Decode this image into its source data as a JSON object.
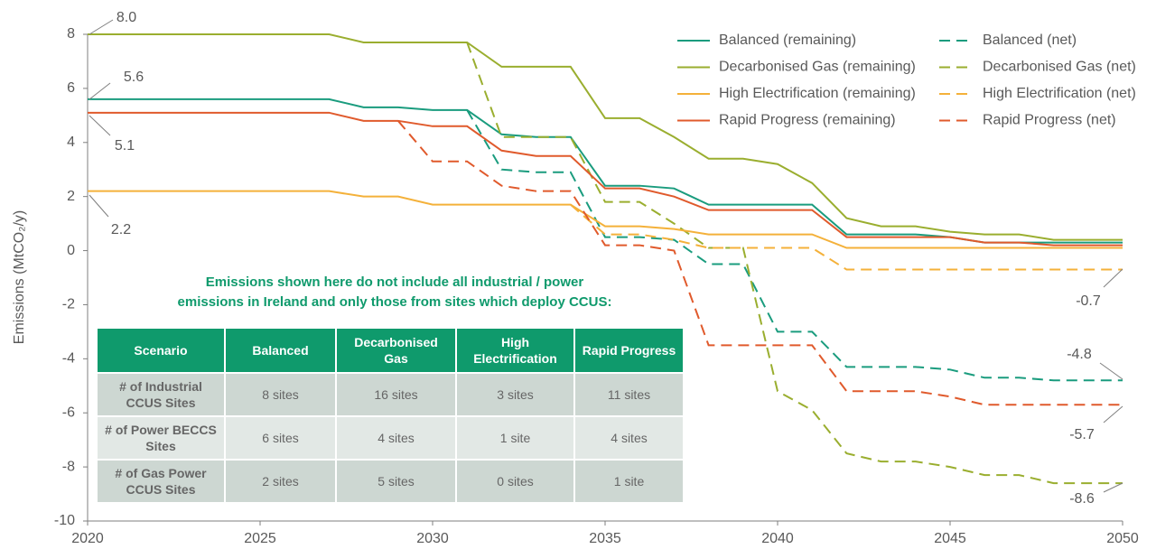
{
  "chart_data": {
    "type": "line",
    "y_label": "Emissions (MtCO₂/y)",
    "x": [
      2020,
      2021,
      2022,
      2023,
      2024,
      2025,
      2026,
      2027,
      2028,
      2029,
      2030,
      2031,
      2032,
      2033,
      2034,
      2035,
      2036,
      2037,
      2038,
      2039,
      2040,
      2041,
      2042,
      2043,
      2044,
      2045,
      2046,
      2047,
      2048,
      2049,
      2050
    ],
    "xlim": [
      2020,
      2050
    ],
    "xticks": [
      2020,
      2025,
      2030,
      2035,
      2040,
      2045,
      2050
    ],
    "ylim": [
      -10,
      8
    ],
    "yticks": [
      -10,
      -8,
      -6,
      -4,
      -2,
      0,
      2,
      4,
      6,
      8
    ],
    "grid": false,
    "legend": "top-right",
    "series": [
      {
        "name": "Balanced (remaining)",
        "color": "#1a9c7e",
        "dashed": false,
        "values": [
          5.6,
          5.6,
          5.6,
          5.6,
          5.6,
          5.6,
          5.6,
          5.6,
          5.3,
          5.3,
          5.2,
          5.2,
          4.3,
          4.2,
          4.2,
          2.4,
          2.4,
          2.3,
          1.7,
          1.7,
          1.7,
          1.7,
          0.6,
          0.6,
          0.6,
          0.5,
          0.3,
          0.3,
          0.3,
          0.3,
          0.3
        ]
      },
      {
        "name": "Balanced (net)",
        "color": "#1a9c7e",
        "dashed": true,
        "values": [
          null,
          null,
          null,
          null,
          null,
          null,
          null,
          null,
          null,
          null,
          null,
          5.2,
          3.0,
          2.9,
          2.9,
          0.5,
          0.5,
          0.4,
          -0.5,
          -0.5,
          -3.0,
          -3.0,
          -4.3,
          -4.3,
          -4.3,
          -4.4,
          -4.7,
          -4.7,
          -4.8,
          -4.8,
          -4.8
        ]
      },
      {
        "name": "Decarbonised Gas (remaining)",
        "color": "#9aae2f",
        "dashed": false,
        "values": [
          8.0,
          8.0,
          8.0,
          8.0,
          8.0,
          8.0,
          8.0,
          8.0,
          7.7,
          7.7,
          7.7,
          7.7,
          6.8,
          6.8,
          6.8,
          4.9,
          4.9,
          4.2,
          3.4,
          3.4,
          3.2,
          2.5,
          1.2,
          0.9,
          0.9,
          0.7,
          0.6,
          0.6,
          0.4,
          0.4,
          0.4
        ]
      },
      {
        "name": "Decarbonised Gas (net)",
        "color": "#9aae2f",
        "dashed": true,
        "values": [
          null,
          null,
          null,
          null,
          null,
          null,
          null,
          null,
          null,
          null,
          null,
          7.7,
          4.2,
          4.2,
          4.2,
          1.8,
          1.8,
          1.0,
          0.1,
          0.1,
          -5.2,
          -5.9,
          -7.5,
          -7.8,
          -7.8,
          -8.0,
          -8.3,
          -8.3,
          -8.6,
          -8.6,
          -8.6
        ]
      },
      {
        "name": "High Electrification (remaining)",
        "color": "#f4b13a",
        "dashed": false,
        "values": [
          2.2,
          2.2,
          2.2,
          2.2,
          2.2,
          2.2,
          2.2,
          2.2,
          2.0,
          2.0,
          1.7,
          1.7,
          1.7,
          1.7,
          1.7,
          0.9,
          0.9,
          0.8,
          0.6,
          0.6,
          0.6,
          0.6,
          0.1,
          0.1,
          0.1,
          0.1,
          0.1,
          0.1,
          0.1,
          0.1,
          0.1
        ]
      },
      {
        "name": "High Electrification (net)",
        "color": "#f4b13a",
        "dashed": true,
        "values": [
          null,
          null,
          null,
          null,
          null,
          null,
          null,
          null,
          null,
          null,
          null,
          null,
          null,
          null,
          1.7,
          0.6,
          0.6,
          0.4,
          0.1,
          0.1,
          0.1,
          0.1,
          -0.7,
          -0.7,
          -0.7,
          -0.7,
          -0.7,
          -0.7,
          -0.7,
          -0.7,
          -0.7
        ]
      },
      {
        "name": "Rapid Progress (remaining)",
        "color": "#e05a2c",
        "dashed": false,
        "values": [
          5.1,
          5.1,
          5.1,
          5.1,
          5.1,
          5.1,
          5.1,
          5.1,
          4.8,
          4.8,
          4.6,
          4.6,
          3.7,
          3.5,
          3.5,
          2.3,
          2.3,
          2.0,
          1.5,
          1.5,
          1.5,
          1.5,
          0.5,
          0.5,
          0.5,
          0.5,
          0.3,
          0.3,
          0.2,
          0.2,
          0.2
        ]
      },
      {
        "name": "Rapid Progress (net)",
        "color": "#e05a2c",
        "dashed": true,
        "values": [
          null,
          null,
          null,
          null,
          null,
          null,
          null,
          null,
          null,
          4.8,
          3.3,
          3.3,
          2.4,
          2.2,
          2.2,
          0.2,
          0.2,
          0.0,
          -3.5,
          -3.5,
          -3.5,
          -3.5,
          -5.2,
          -5.2,
          -5.2,
          -5.4,
          -5.7,
          -5.7,
          -5.7,
          -5.7,
          -5.7
        ]
      }
    ],
    "annotations": [
      "8.0",
      "5.6",
      "5.1",
      "2.2",
      "-0.7",
      "-4.8",
      "-5.7",
      "-8.6"
    ],
    "table": {
      "note": [
        "Emissions shown here do not include all industrial / power",
        "emissions in Ireland and only those from sites which deploy CCUS:"
      ],
      "header": [
        "Scenario",
        "Balanced",
        "Decarbonised Gas",
        "High Electrification",
        "Rapid Progress"
      ],
      "rows": [
        [
          "# of Industrial CCUS Sites",
          "8 sites",
          "16 sites",
          "3 sites",
          "11 sites"
        ],
        [
          "# of Power BECCS Sites",
          "6 sites",
          "4 sites",
          "1 site",
          "4 sites"
        ],
        [
          "# of Gas Power CCUS Sites",
          "2 sites",
          "5 sites",
          "0 sites",
          "1 site"
        ]
      ]
    }
  }
}
